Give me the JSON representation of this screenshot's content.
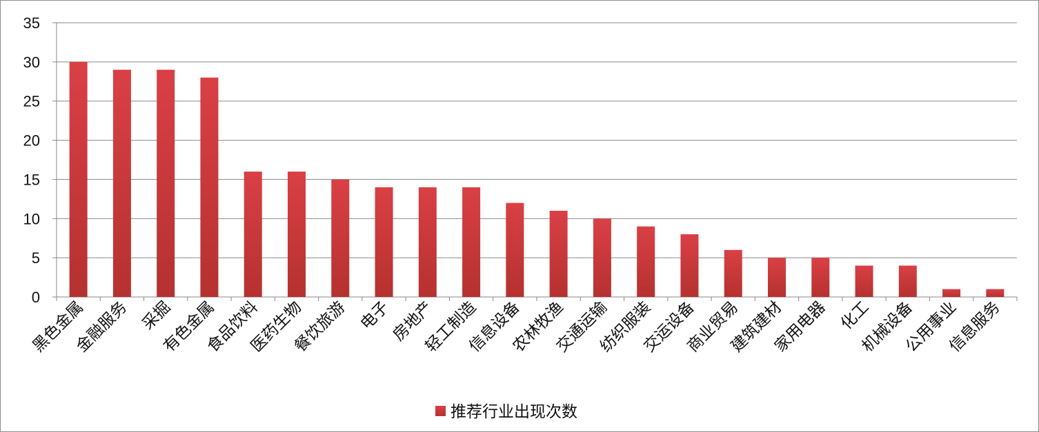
{
  "chart_data": {
    "type": "bar",
    "categories": [
      "黑色金属",
      "金融服务",
      "采掘",
      "有色金属",
      "食品饮料",
      "医药生物",
      "餐饮旅游",
      "电子",
      "房地产",
      "轻工制造",
      "信息设备",
      "农林牧渔",
      "交通运输",
      "纺织服装",
      "交运设备",
      "商业贸易",
      "建筑建材",
      "家用电器",
      "化工",
      "机械设备",
      "公用事业",
      "信息服务"
    ],
    "series": [
      {
        "name": "推荐行业出现次数",
        "values": [
          30,
          29,
          29,
          28,
          16,
          16,
          15,
          14,
          14,
          14,
          12,
          11,
          10,
          9,
          8,
          6,
          5,
          5,
          4,
          4,
          1,
          1
        ],
        "color": "#c0393b"
      }
    ],
    "ylim": [
      0,
      35
    ],
    "yticks": [
      "0",
      "5",
      "10",
      "15",
      "20",
      "25",
      "30",
      "35"
    ],
    "grid": true,
    "legend_position": "bottom"
  }
}
